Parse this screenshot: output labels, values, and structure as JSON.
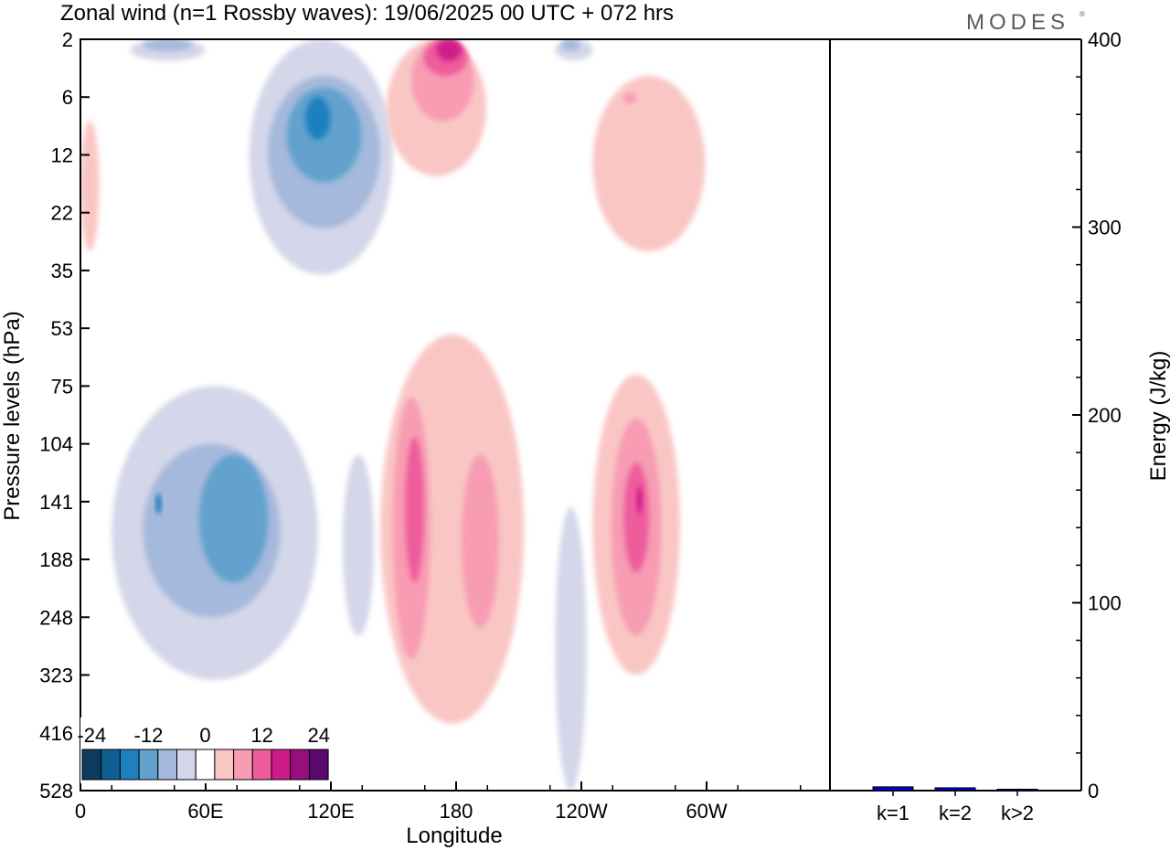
{
  "header": {
    "title": "Zonal wind (n=1 Rossby waves):  19/06/2025  00 UTC  + 072 hrs",
    "logo": "MODES"
  },
  "chart_data": [
    {
      "type": "contour",
      "title": "Zonal wind (n=1 Rossby waves):  19/06/2025  00 UTC  + 072 hrs",
      "xlabel": "Longitude",
      "ylabel": "Pressure levels (hPa)",
      "x_ticks": [
        "0",
        "60E",
        "120E",
        "180",
        "120W",
        "60W"
      ],
      "y_ticks": [
        "2",
        "6",
        "12",
        "22",
        "35",
        "53",
        "75",
        "104",
        "141",
        "188",
        "248",
        "323",
        "416",
        "528"
      ],
      "colorbar": {
        "tick_labels": [
          "-24",
          "-12",
          "0",
          "12",
          "24"
        ],
        "colors": [
          "#0d3b5e",
          "#0f5f93",
          "#1f80bf",
          "#62a2cd",
          "#a5b9dc",
          "#d4d6e9",
          "#ffffff",
          "#f9c6c4",
          "#f79cb2",
          "#ee5c9c",
          "#cf1a8a",
          "#990e7e",
          "#58086e"
        ]
      },
      "features": [
        {
          "level": -4,
          "lon": [
            5,
            38
          ],
          "lev": [
            75,
            330
          ]
        },
        {
          "level": -8,
          "lon": [
            10,
            32
          ],
          "lev": [
            104,
            248
          ]
        },
        {
          "level": -12,
          "lon": [
            19,
            30
          ],
          "lev": [
            110,
            210
          ]
        },
        {
          "level": -16,
          "lon": [
            12,
            13
          ],
          "lev": [
            135,
            150
          ]
        },
        {
          "level": -4,
          "lon": [
            27,
            50
          ],
          "lev": [
            2,
            36
          ]
        },
        {
          "level": -8,
          "lon": [
            30,
            48
          ],
          "lev": [
            4,
            25
          ]
        },
        {
          "level": -12,
          "lon": [
            33,
            45
          ],
          "lev": [
            5,
            16
          ]
        },
        {
          "level": -16,
          "lon": [
            36,
            40
          ],
          "lev": [
            6,
            10
          ]
        },
        {
          "level": -4,
          "lon": [
            42,
            47
          ],
          "lev": [
            110,
            270
          ]
        },
        {
          "level": -4,
          "lon": [
            76,
            81
          ],
          "lev": [
            145,
            528
          ]
        },
        {
          "level": -4,
          "lon": [
            8,
            20
          ],
          "lev": [
            2,
            3
          ]
        },
        {
          "level": -8,
          "lon": [
            10,
            18
          ],
          "lev": [
            2,
            2.5
          ]
        },
        {
          "level": -4,
          "lon": [
            76,
            82
          ],
          "lev": [
            2,
            3
          ]
        },
        {
          "level": -8,
          "lon": [
            77,
            80
          ],
          "lev": [
            2,
            2.5
          ]
        },
        {
          "level": 4,
          "lon": [
            48,
            71
          ],
          "lev": [
            55,
            400
          ]
        },
        {
          "level": 8,
          "lon": [
            50,
            56
          ],
          "lev": [
            80,
            300
          ]
        },
        {
          "level": 8,
          "lon": [
            61,
            67
          ],
          "lev": [
            110,
            260
          ]
        },
        {
          "level": 12,
          "lon": [
            52,
            55
          ],
          "lev": [
            100,
            210
          ]
        },
        {
          "level": 4,
          "lon": [
            82,
            96
          ],
          "lev": [
            70,
            323
          ]
        },
        {
          "level": 8,
          "lon": [
            85,
            93
          ],
          "lev": [
            90,
            270
          ]
        },
        {
          "level": 12,
          "lon": [
            87,
            91
          ],
          "lev": [
            115,
            200
          ]
        },
        {
          "level": 16,
          "lon": [
            89,
            90
          ],
          "lev": [
            130,
            150
          ]
        },
        {
          "level": 4,
          "lon": [
            49,
            65
          ],
          "lev": [
            2,
            15
          ]
        },
        {
          "level": 8,
          "lon": [
            53,
            63
          ],
          "lev": [
            2,
            8
          ]
        },
        {
          "level": 12,
          "lon": [
            55,
            62
          ],
          "lev": [
            2,
            4
          ]
        },
        {
          "level": 16,
          "lon": [
            57,
            61
          ],
          "lev": [
            2,
            3
          ]
        },
        {
          "level": 4,
          "lon": [
            82,
            100
          ],
          "lev": [
            4,
            30
          ]
        },
        {
          "level": 8,
          "lon": [
            87,
            89
          ],
          "lev": [
            5.5,
            6.5
          ]
        },
        {
          "level": 4,
          "lon": [
            0,
            3
          ],
          "lev": [
            8,
            30
          ]
        }
      ]
    },
    {
      "type": "bar",
      "ylabel": "Energy (J/kg)",
      "categories": [
        "k=1",
        "k=2",
        "k>2"
      ],
      "values": [
        2,
        1.5,
        0.6
      ],
      "ylim": [
        0,
        400
      ],
      "y_ticks": [
        "0",
        "100",
        "200",
        "300",
        "400"
      ],
      "bar_color": "#0000cc"
    }
  ]
}
